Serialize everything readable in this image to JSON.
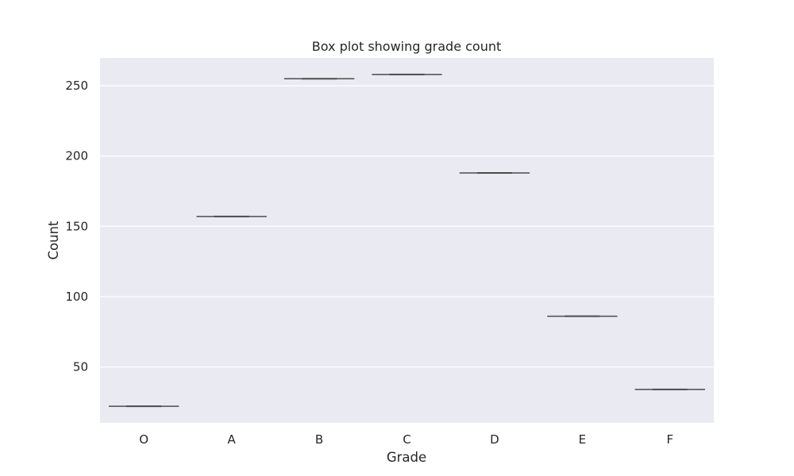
{
  "chart_data": {
    "type": "box",
    "title": "Box plot showing grade count",
    "xlabel": "Grade",
    "ylabel": "Count",
    "categories": [
      "O",
      "A",
      "B",
      "C",
      "D",
      "E",
      "F"
    ],
    "values": [
      22,
      157,
      255,
      258,
      188,
      86,
      34
    ],
    "yticks": [
      50,
      100,
      150,
      200,
      250
    ],
    "ylim": [
      10.2,
      269.8
    ],
    "grid": true,
    "legend": "none",
    "colors": {
      "plot_background": "#eaeaf2",
      "grid": "#ffffff",
      "box_line": "#4c4c4c",
      "text": "#262626"
    }
  }
}
